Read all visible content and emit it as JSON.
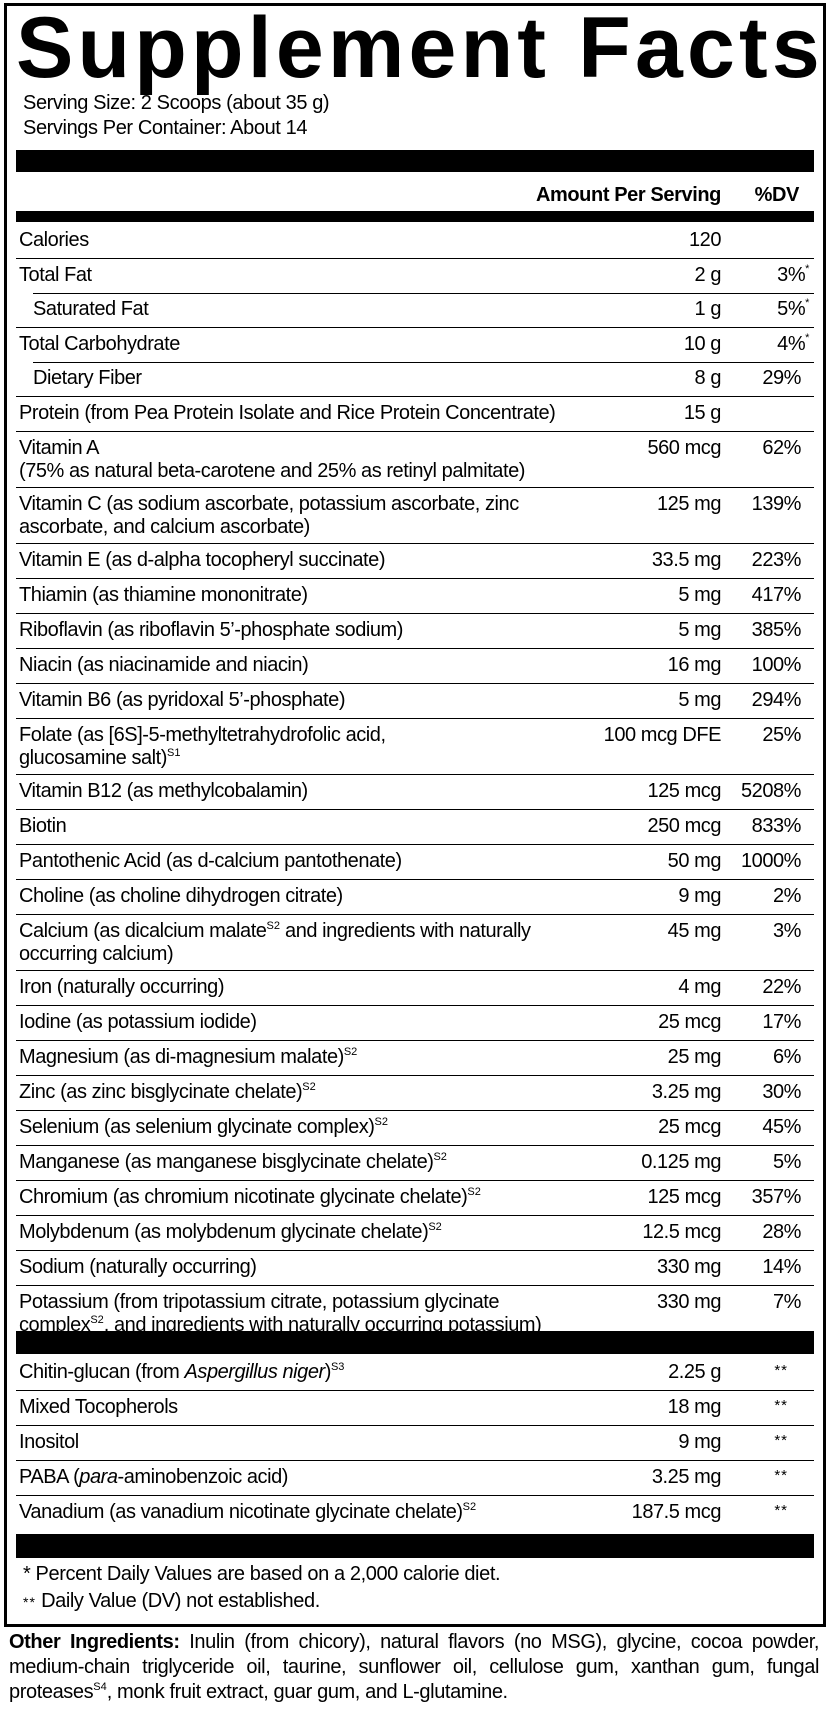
{
  "title": "Supplement Facts",
  "serving_size": "Serving Size: 2 Scoops (about 35 g)",
  "servings_per_container": "Servings Per Container: About 14",
  "header": {
    "amount": "Amount Per Serving",
    "dv": "%DV"
  },
  "nutrients": [
    {
      "name": [
        [
          "Calories"
        ]
      ],
      "amount": "120",
      "dv": ""
    },
    {
      "name": [
        [
          "Total Fat"
        ]
      ],
      "amount": "2 g",
      "dv": "3%",
      "dv_star": "*"
    },
    {
      "name": [
        [
          "Saturated Fat"
        ]
      ],
      "amount": "1 g",
      "dv": "5%",
      "dv_star": "*",
      "sub": true
    },
    {
      "name": [
        [
          "Total Carbohydrate"
        ]
      ],
      "amount": "10 g",
      "dv": "4%",
      "dv_star": "*"
    },
    {
      "name": [
        [
          "Dietary Fiber"
        ]
      ],
      "amount": "8 g",
      "dv": "29%",
      "sub": true
    },
    {
      "name": [
        [
          "Protein (from Pea Protein Isolate and Rice Protein Concentrate)"
        ]
      ],
      "amount": "15 g",
      "dv": ""
    },
    {
      "name": [
        [
          "Vitamin A\n(75% as natural beta-carotene and 25% as retinyl palmitate)"
        ]
      ],
      "amount": "560 mcg",
      "dv": "62%"
    },
    {
      "name": [
        [
          "Vitamin C (as sodium ascorbate, potassium ascorbate, zinc\nascorbate, and calcium ascorbate)"
        ]
      ],
      "amount": "125 mg",
      "dv": "139%"
    },
    {
      "name": [
        [
          "Vitamin E (as d-alpha tocopheryl succinate)"
        ]
      ],
      "amount": "33.5 mg",
      "dv": "223%"
    },
    {
      "name": [
        [
          "Thiamin (as thiamine mononitrate)"
        ]
      ],
      "amount": "5 mg",
      "dv": "417%"
    },
    {
      "name": [
        [
          "Riboflavin (as riboflavin 5’-phosphate sodium)"
        ]
      ],
      "amount": "5 mg",
      "dv": "385%"
    },
    {
      "name": [
        [
          "Niacin (as niacinamide and niacin)"
        ]
      ],
      "amount": "16 mg",
      "dv": "100%"
    },
    {
      "name": [
        [
          "Vitamin B6 (as pyridoxal 5’-phosphate)"
        ]
      ],
      "amount": "5 mg",
      "dv": "294%"
    },
    {
      "name": [
        [
          "Folate (as [6S]-5-methyltetrahydrofolic acid,\nglucosamine salt)"
        ],
        [
          "S1",
          "sup"
        ]
      ],
      "amount": "100 mcg DFE",
      "dv": "25%"
    },
    {
      "name": [
        [
          "Vitamin B12 (as methylcobalamin)"
        ]
      ],
      "amount": "125 mcg",
      "dv": "5208%"
    },
    {
      "name": [
        [
          "Biotin"
        ]
      ],
      "amount": "250 mcg",
      "dv": "833%"
    },
    {
      "name": [
        [
          "Pantothenic Acid (as d-calcium pantothenate)"
        ]
      ],
      "amount": "50 mg",
      "dv": "1000%"
    },
    {
      "name": [
        [
          "Choline (as choline dihydrogen citrate)"
        ]
      ],
      "amount": "9 mg",
      "dv": "2%"
    },
    {
      "name": [
        [
          "Calcium (as dicalcium malate"
        ],
        [
          "S2",
          "sup"
        ],
        [
          " and ingredients with naturally\noccurring calcium)"
        ]
      ],
      "amount": "45 mg",
      "dv": "3%"
    },
    {
      "name": [
        [
          "Iron (naturally occurring)"
        ]
      ],
      "amount": "4 mg",
      "dv": "22%"
    },
    {
      "name": [
        [
          "Iodine (as potassium iodide)"
        ]
      ],
      "amount": "25 mcg",
      "dv": "17%"
    },
    {
      "name": [
        [
          "Magnesium (as di-magnesium malate)"
        ],
        [
          "S2",
          "sup"
        ]
      ],
      "amount": "25 mg",
      "dv": "6%"
    },
    {
      "name": [
        [
          "Zinc (as zinc bisglycinate chelate)"
        ],
        [
          "S2",
          "sup"
        ]
      ],
      "amount": "3.25 mg",
      "dv": "30%"
    },
    {
      "name": [
        [
          "Selenium (as selenium glycinate complex)"
        ],
        [
          "S2",
          "sup"
        ]
      ],
      "amount": "25 mcg",
      "dv": "45%"
    },
    {
      "name": [
        [
          "Manganese (as manganese bisglycinate chelate)"
        ],
        [
          "S2",
          "sup"
        ]
      ],
      "amount": "0.125 mg",
      "dv": "5%"
    },
    {
      "name": [
        [
          "Chromium (as chromium nicotinate glycinate chelate)"
        ],
        [
          "S2",
          "sup"
        ]
      ],
      "amount": "125 mcg",
      "dv": "357%"
    },
    {
      "name": [
        [
          "Molybdenum (as molybdenum glycinate chelate)"
        ],
        [
          "S2",
          "sup"
        ]
      ],
      "amount": "12.5 mcg",
      "dv": "28%"
    },
    {
      "name": [
        [
          "Sodium (naturally occurring)"
        ]
      ],
      "amount": "330 mg",
      "dv": "14%"
    },
    {
      "name": [
        [
          "Potassium (from tripotassium citrate, potassium glycinate\ncomplex"
        ],
        [
          "S2",
          "sup"
        ],
        [
          ", and ingredients with naturally occurring potassium)"
        ]
      ],
      "amount": "330 mg",
      "dv": "7%"
    }
  ],
  "other_nutrients": [
    {
      "name": [
        [
          "Chitin-glucan (from "
        ],
        [
          "Aspergillus niger",
          "i"
        ],
        [
          ")"
        ],
        [
          "S3",
          "sup"
        ]
      ],
      "amount": "2.25 g",
      "dv": "**"
    },
    {
      "name": [
        [
          "Mixed Tocopherols"
        ]
      ],
      "amount": "18 mg",
      "dv": "**"
    },
    {
      "name": [
        [
          "Inositol"
        ]
      ],
      "amount": "9 mg",
      "dv": "**"
    },
    {
      "name": [
        [
          "PABA ("
        ],
        [
          "para",
          "i"
        ],
        [
          "-aminobenzoic acid)"
        ]
      ],
      "amount": "3.25 mg",
      "dv": "**"
    },
    {
      "name": [
        [
          "Vanadium (as vanadium nicotinate glycinate chelate)"
        ],
        [
          "S2",
          "sup"
        ]
      ],
      "amount": "187.5 mcg",
      "dv": "**"
    }
  ],
  "footnotes": {
    "f1_mark": "*",
    "f1_text": " Percent Daily Values are based on a 2,000 calorie diet.",
    "f2_mark": "**",
    "f2_text": " Daily Value (DV) not established."
  },
  "other_ingredients": {
    "label": "Other Ingredients:",
    "text1": " Inulin (from chicory), natural flavors (no MSG), glycine, cocoa powder, medium-chain triglyceride oil, taurine, sunflower oil, cellulose gum, xanthan gum, fungal proteases",
    "sup": "S4",
    "text2": ", monk fruit extract, guar gum, and L-glutamine."
  }
}
